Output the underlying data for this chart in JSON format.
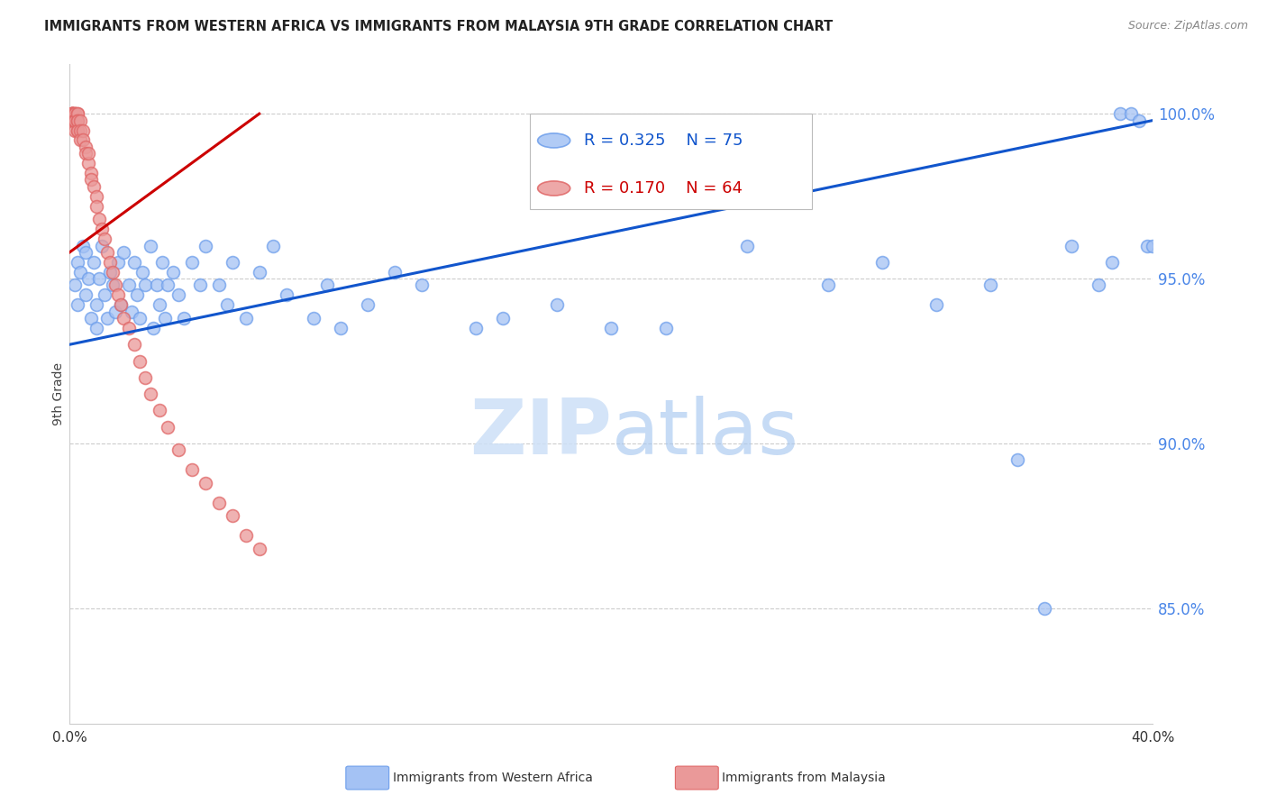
{
  "title": "IMMIGRANTS FROM WESTERN AFRICA VS IMMIGRANTS FROM MALAYSIA 9TH GRADE CORRELATION CHART",
  "source": "Source: ZipAtlas.com",
  "ylabel": "9th Grade",
  "y_ticks": [
    0.85,
    0.9,
    0.95,
    1.0
  ],
  "y_tick_labels": [
    "85.0%",
    "90.0%",
    "95.0%",
    "100.0%"
  ],
  "x_range": [
    0.0,
    0.4
  ],
  "y_range": [
    0.815,
    1.015
  ],
  "legend_blue_R": "0.325",
  "legend_blue_N": "75",
  "legend_pink_R": "0.170",
  "legend_pink_N": "64",
  "legend_blue_label": "Immigrants from Western Africa",
  "legend_pink_label": "Immigrants from Malaysia",
  "blue_color": "#a4c2f4",
  "blue_edge_color": "#6d9eeb",
  "pink_color": "#ea9999",
  "pink_edge_color": "#e06666",
  "trendline_blue_color": "#1155cc",
  "trendline_pink_color": "#cc0000",
  "blue_x": [
    0.002,
    0.003,
    0.003,
    0.004,
    0.005,
    0.006,
    0.006,
    0.007,
    0.008,
    0.009,
    0.01,
    0.01,
    0.011,
    0.012,
    0.013,
    0.014,
    0.015,
    0.016,
    0.017,
    0.018,
    0.019,
    0.02,
    0.022,
    0.023,
    0.024,
    0.025,
    0.026,
    0.027,
    0.028,
    0.03,
    0.031,
    0.032,
    0.033,
    0.034,
    0.035,
    0.036,
    0.038,
    0.04,
    0.042,
    0.045,
    0.048,
    0.05,
    0.055,
    0.058,
    0.06,
    0.065,
    0.07,
    0.075,
    0.08,
    0.09,
    0.095,
    0.1,
    0.11,
    0.12,
    0.13,
    0.15,
    0.16,
    0.18,
    0.2,
    0.22,
    0.25,
    0.28,
    0.3,
    0.32,
    0.34,
    0.35,
    0.36,
    0.37,
    0.38,
    0.385,
    0.388,
    0.392,
    0.395,
    0.398,
    0.4
  ],
  "blue_y": [
    0.948,
    0.955,
    0.942,
    0.952,
    0.96,
    0.958,
    0.945,
    0.95,
    0.938,
    0.955,
    0.942,
    0.935,
    0.95,
    0.96,
    0.945,
    0.938,
    0.952,
    0.948,
    0.94,
    0.955,
    0.942,
    0.958,
    0.948,
    0.94,
    0.955,
    0.945,
    0.938,
    0.952,
    0.948,
    0.96,
    0.935,
    0.948,
    0.942,
    0.955,
    0.938,
    0.948,
    0.952,
    0.945,
    0.938,
    0.955,
    0.948,
    0.96,
    0.948,
    0.942,
    0.955,
    0.938,
    0.952,
    0.96,
    0.945,
    0.938,
    0.948,
    0.935,
    0.942,
    0.952,
    0.948,
    0.935,
    0.938,
    0.942,
    0.935,
    0.935,
    0.96,
    0.948,
    0.955,
    0.942,
    0.948,
    0.895,
    0.85,
    0.96,
    0.948,
    0.955,
    1.0,
    1.0,
    0.998,
    0.96,
    0.96
  ],
  "pink_x": [
    0.001,
    0.001,
    0.001,
    0.001,
    0.001,
    0.001,
    0.001,
    0.001,
    0.001,
    0.002,
    0.002,
    0.002,
    0.002,
    0.002,
    0.002,
    0.002,
    0.002,
    0.002,
    0.002,
    0.002,
    0.003,
    0.003,
    0.003,
    0.003,
    0.003,
    0.003,
    0.004,
    0.004,
    0.004,
    0.005,
    0.005,
    0.006,
    0.006,
    0.007,
    0.007,
    0.008,
    0.008,
    0.009,
    0.01,
    0.01,
    0.011,
    0.012,
    0.013,
    0.014,
    0.015,
    0.016,
    0.017,
    0.018,
    0.019,
    0.02,
    0.022,
    0.024,
    0.026,
    0.028,
    0.03,
    0.033,
    0.036,
    0.04,
    0.045,
    0.05,
    0.055,
    0.06,
    0.065,
    0.07
  ],
  "pink_y": [
    1.0,
    1.0,
    1.0,
    1.0,
    1.0,
    1.0,
    1.0,
    1.0,
    0.998,
    1.0,
    1.0,
    1.0,
    1.0,
    0.998,
    0.998,
    0.998,
    0.998,
    0.995,
    0.998,
    0.998,
    1.0,
    1.0,
    0.998,
    0.998,
    0.995,
    0.995,
    0.998,
    0.995,
    0.992,
    0.995,
    0.992,
    0.99,
    0.988,
    0.985,
    0.988,
    0.982,
    0.98,
    0.978,
    0.975,
    0.972,
    0.968,
    0.965,
    0.962,
    0.958,
    0.955,
    0.952,
    0.948,
    0.945,
    0.942,
    0.938,
    0.935,
    0.93,
    0.925,
    0.92,
    0.915,
    0.91,
    0.905,
    0.898,
    0.892,
    0.888,
    0.882,
    0.878,
    0.872,
    0.868
  ],
  "blue_trendline_x": [
    0.0,
    0.4
  ],
  "blue_trendline_y": [
    0.93,
    0.998
  ],
  "pink_trendline_x": [
    0.0,
    0.07
  ],
  "pink_trendline_y": [
    0.958,
    1.0
  ],
  "watermark_zip": "ZIP",
  "watermark_atlas": "atlas",
  "background_color": "#ffffff",
  "grid_color": "#cccccc",
  "right_tick_color": "#4a86e8",
  "title_fontsize": 11,
  "axis_label_fontsize": 10,
  "marker_size": 100
}
